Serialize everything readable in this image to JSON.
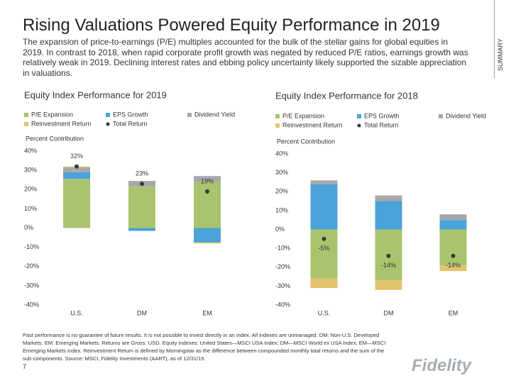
{
  "header": {
    "title": "Rising Valuations Powered Equity Performance in 2019",
    "subtitle": "The expansion of price-to-earnings (P/E) multiples accounted for the bulk of the stellar gains for global equities in 2019. In contrast to 2018, when rapid corporate profit growth was negated by reduced P/E ratios, earnings growth was relatively weak in 2019. Declining interest rates and ebbing policy uncertainty likely supported the sizable appreciation in valuations.",
    "side_label": "SUMMARY"
  },
  "chart_data": [
    {
      "type": "bar",
      "stacked": true,
      "title": "Equity Index Performance for 2019",
      "y_label": "Percent Contribution",
      "categories": [
        "U.S.",
        "DM",
        "EM"
      ],
      "series": [
        {
          "name": "P/E Expansion",
          "color": "#a9c46c",
          "values": [
            25.5,
            21.5,
            24
          ]
        },
        {
          "name": "EPS Growth",
          "color": "#4aa3d9",
          "values": [
            3.5,
            -1.5,
            -7.5
          ]
        },
        {
          "name": "Dividend Yield",
          "color": "#a6a8ab",
          "values": [
            2.5,
            3,
            3
          ]
        },
        {
          "name": "Reinvestment Return",
          "color": "#e3c36a",
          "values": [
            0.5,
            0,
            -0.5
          ]
        },
        {
          "name": "Total Return",
          "color": "#2f3d3d",
          "kind": "marker",
          "values": [
            32,
            23,
            19
          ],
          "value_labels": [
            "32%",
            "23%",
            "19%"
          ]
        }
      ],
      "ylim": [
        -40,
        40
      ],
      "yticks": [
        {
          "value": -40,
          "label": "-40%"
        },
        {
          "value": -30,
          "label": "-30%"
        },
        {
          "value": -20,
          "label": "-20%"
        },
        {
          "value": -10,
          "label": "-10%"
        },
        {
          "value": 0,
          "label": "0%"
        },
        {
          "value": 10,
          "label": "10%"
        },
        {
          "value": 20,
          "label": "20%"
        },
        {
          "value": 30,
          "label": "30%"
        },
        {
          "value": 40,
          "label": "40%"
        }
      ],
      "grid": false
    },
    {
      "type": "bar",
      "stacked": true,
      "title": "Equity Index Performance for 2018",
      "y_label": "Percent Contribution",
      "categories": [
        "U.S.",
        "DM",
        "EM"
      ],
      "series": [
        {
          "name": "P/E Expansion",
          "color": "#a9c46c",
          "values": [
            -26,
            -27,
            -19
          ]
        },
        {
          "name": "EPS Growth",
          "color": "#4aa3d9",
          "values": [
            24,
            15,
            5
          ]
        },
        {
          "name": "Dividend Yield",
          "color": "#a6a8ab",
          "values": [
            2,
            3,
            3
          ]
        },
        {
          "name": "Reinvestment Return",
          "color": "#e3c36a",
          "values": [
            -5,
            -5,
            -3
          ]
        },
        {
          "name": "Total Return",
          "color": "#2f3d3d",
          "kind": "marker",
          "values": [
            -5,
            -14,
            -14
          ],
          "value_labels": [
            "-5%",
            "-14%",
            "-14%"
          ]
        }
      ],
      "ylim": [
        -40,
        40
      ],
      "yticks": [
        {
          "value": -40,
          "label": "-40%"
        },
        {
          "value": -30,
          "label": "-30%"
        },
        {
          "value": -20,
          "label": "-20%"
        },
        {
          "value": -10,
          "label": "-10%"
        },
        {
          "value": 0,
          "label": "0%"
        },
        {
          "value": 10,
          "label": "10%"
        },
        {
          "value": 20,
          "label": "20%"
        },
        {
          "value": 30,
          "label": "30%"
        },
        {
          "value": 40,
          "label": "40%"
        }
      ],
      "grid": false
    }
  ],
  "footer": {
    "note": "Past performance is no guarantee of future results. It is not possible to invest directly in an index. All indexes are unmanaged. DM: Non-U.S. Developed Markets. EM: Emerging Markets. Returns are Gross. USD. Equity indexes: United States—MSCI USA Index; DM—MSCI World ex USA Index; EM—MSCI Emerging Markets Index. Reinvestment Return is defined by Morningstar as the difference between compounded monthly total returns and the sum of the sub-components. Source: MSCI, Fidelity Investments (AART), as of 12/31/19.",
    "page_number": "7",
    "logo": "Fidelity"
  }
}
